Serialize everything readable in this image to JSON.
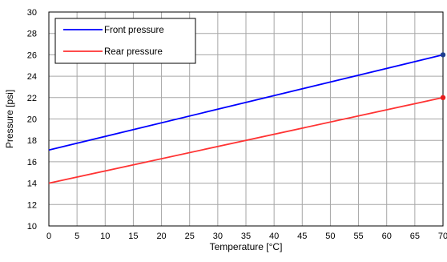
{
  "chart_data": {
    "type": "line",
    "title": "",
    "xlabel": "Temperature [°C]",
    "ylabel": "Pressure [psi]",
    "xlim": [
      0,
      70
    ],
    "ylim": [
      10,
      30
    ],
    "x_ticks": [
      0,
      5,
      10,
      15,
      20,
      25,
      30,
      35,
      40,
      45,
      50,
      55,
      60,
      65,
      70
    ],
    "y_ticks": [
      10,
      12,
      14,
      16,
      18,
      20,
      22,
      24,
      26,
      28,
      30
    ],
    "grid": true,
    "legend_position": "top-left",
    "series": [
      {
        "name": "Front pressure",
        "color": "#0000ff",
        "x": [
          0,
          70
        ],
        "y": [
          17.1,
          26.0
        ],
        "end_marker_color": "#1f3f8f"
      },
      {
        "name": "Rear pressure",
        "color": "#ff3333",
        "x": [
          0,
          70
        ],
        "y": [
          14.0,
          22.0
        ],
        "end_marker_color": "#e81c1c"
      }
    ]
  }
}
